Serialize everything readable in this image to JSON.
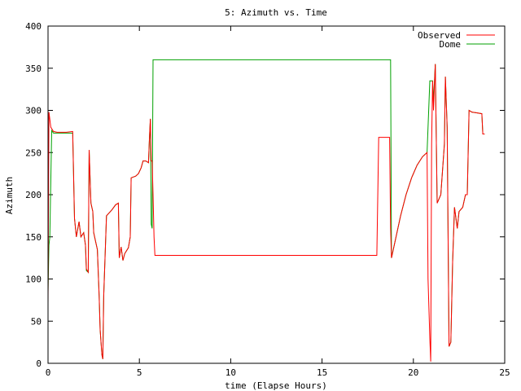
{
  "chart_data": {
    "type": "line",
    "title": "5: Azimuth vs. Time",
    "xlabel": "time (Elapse Hours)",
    "ylabel": "Azimuth",
    "xlim": [
      0,
      25
    ],
    "ylim": [
      0,
      400
    ],
    "xticks": [
      0,
      5,
      10,
      15,
      20,
      25
    ],
    "yticks": [
      0,
      50,
      100,
      150,
      200,
      250,
      300,
      350,
      400
    ],
    "grid": false,
    "legend_position": "top-right",
    "series": [
      {
        "name": "Observed",
        "color": "#ff0000",
        "points": [
          [
            0.0,
            70
          ],
          [
            0.05,
            298
          ],
          [
            0.15,
            280
          ],
          [
            0.3,
            275
          ],
          [
            0.5,
            274
          ],
          [
            1.0,
            274
          ],
          [
            1.35,
            275
          ],
          [
            1.35,
            275
          ],
          [
            1.45,
            172
          ],
          [
            1.55,
            150
          ],
          [
            1.7,
            168
          ],
          [
            1.8,
            150
          ],
          [
            1.95,
            155
          ],
          [
            2.05,
            140
          ],
          [
            2.1,
            112
          ],
          [
            2.2,
            108
          ],
          [
            2.25,
            253
          ],
          [
            2.35,
            190
          ],
          [
            2.45,
            180
          ],
          [
            2.5,
            155
          ],
          [
            2.6,
            145
          ],
          [
            2.7,
            135
          ],
          [
            2.8,
            80
          ],
          [
            2.85,
            40
          ],
          [
            2.9,
            25
          ],
          [
            2.95,
            10
          ],
          [
            3.0,
            5
          ],
          [
            3.05,
            80
          ],
          [
            3.2,
            175
          ],
          [
            3.5,
            182
          ],
          [
            3.7,
            188
          ],
          [
            3.85,
            190
          ],
          [
            3.9,
            125
          ],
          [
            4.0,
            138
          ],
          [
            4.1,
            122
          ],
          [
            4.2,
            130
          ],
          [
            4.4,
            137
          ],
          [
            4.5,
            150
          ],
          [
            4.55,
            220
          ],
          [
            4.8,
            222
          ],
          [
            4.95,
            225
          ],
          [
            5.1,
            232
          ],
          [
            5.2,
            240
          ],
          [
            5.35,
            240
          ],
          [
            5.5,
            238
          ],
          [
            5.55,
            265
          ],
          [
            5.6,
            290
          ],
          [
            5.65,
            240
          ],
          [
            5.7,
            240
          ],
          [
            5.75,
            200
          ],
          [
            5.8,
            150
          ],
          [
            5.85,
            128
          ],
          [
            6.2,
            128
          ],
          [
            18.0,
            128
          ],
          [
            18.1,
            268
          ],
          [
            18.25,
            268
          ],
          [
            18.7,
            268
          ],
          [
            18.75,
            160
          ],
          [
            18.8,
            125
          ],
          [
            19.0,
            145
          ],
          [
            19.3,
            175
          ],
          [
            19.6,
            200
          ],
          [
            19.9,
            220
          ],
          [
            20.2,
            235
          ],
          [
            20.5,
            245
          ],
          [
            20.75,
            250
          ],
          [
            20.8,
            100
          ],
          [
            20.9,
            30
          ],
          [
            20.95,
            2
          ],
          [
            21.0,
            260
          ],
          [
            21.05,
            335
          ],
          [
            21.1,
            300
          ],
          [
            21.2,
            355
          ],
          [
            21.3,
            190
          ],
          [
            21.5,
            200
          ],
          [
            21.7,
            260
          ],
          [
            21.75,
            340
          ],
          [
            21.85,
            280
          ],
          [
            21.95,
            20
          ],
          [
            22.05,
            25
          ],
          [
            22.15,
            120
          ],
          [
            22.25,
            185
          ],
          [
            22.4,
            160
          ],
          [
            22.5,
            180
          ],
          [
            22.7,
            185
          ],
          [
            22.85,
            200
          ],
          [
            22.95,
            200
          ],
          [
            23.05,
            300
          ],
          [
            23.2,
            298
          ],
          [
            23.5,
            297
          ],
          [
            23.75,
            296
          ],
          [
            23.8,
            272
          ],
          [
            23.9,
            272
          ]
        ]
      },
      {
        "name": "Dome",
        "color": "#00a000",
        "points": [
          [
            0.0,
            85
          ],
          [
            0.05,
            140
          ],
          [
            0.1,
            150
          ],
          [
            0.2,
            276
          ],
          [
            0.3,
            273
          ],
          [
            0.5,
            273
          ],
          [
            1.0,
            273
          ],
          [
            1.35,
            273
          ],
          [
            1.45,
            172
          ],
          [
            1.55,
            150
          ],
          [
            1.7,
            168
          ],
          [
            1.8,
            150
          ],
          [
            1.95,
            155
          ],
          [
            2.05,
            140
          ],
          [
            2.1,
            110
          ],
          [
            2.2,
            108
          ],
          [
            2.25,
            253
          ],
          [
            2.35,
            190
          ],
          [
            2.45,
            180
          ],
          [
            2.5,
            155
          ],
          [
            2.6,
            145
          ],
          [
            2.7,
            135
          ],
          [
            2.8,
            80
          ],
          [
            2.85,
            40
          ],
          [
            2.9,
            25
          ],
          [
            2.95,
            10
          ],
          [
            3.0,
            5
          ],
          [
            3.05,
            80
          ],
          [
            3.2,
            175
          ],
          [
            3.5,
            182
          ],
          [
            3.7,
            188
          ],
          [
            3.85,
            190
          ],
          [
            3.9,
            125
          ],
          [
            4.0,
            138
          ],
          [
            4.1,
            122
          ],
          [
            4.2,
            130
          ],
          [
            4.4,
            137
          ],
          [
            4.5,
            150
          ],
          [
            4.55,
            220
          ],
          [
            4.8,
            222
          ],
          [
            4.95,
            225
          ],
          [
            5.1,
            232
          ],
          [
            5.2,
            240
          ],
          [
            5.35,
            240
          ],
          [
            5.5,
            238
          ],
          [
            5.55,
            265
          ],
          [
            5.6,
            290
          ],
          [
            5.65,
            165
          ],
          [
            5.7,
            160
          ],
          [
            5.75,
            360
          ],
          [
            5.8,
            360
          ],
          [
            18.75,
            360
          ],
          [
            18.8,
            125
          ],
          [
            19.0,
            145
          ],
          [
            19.3,
            175
          ],
          [
            19.6,
            200
          ],
          [
            19.9,
            220
          ],
          [
            20.2,
            235
          ],
          [
            20.5,
            245
          ],
          [
            20.75,
            250
          ],
          [
            20.9,
            335
          ],
          [
            21.05,
            335
          ],
          [
            21.1,
            310
          ],
          [
            21.2,
            355
          ],
          [
            21.3,
            190
          ],
          [
            21.5,
            200
          ],
          [
            21.7,
            260
          ],
          [
            21.75,
            340
          ],
          [
            21.85,
            280
          ],
          [
            21.95,
            20
          ],
          [
            22.05,
            25
          ],
          [
            22.15,
            120
          ],
          [
            22.25,
            185
          ],
          [
            22.4,
            160
          ],
          [
            22.5,
            180
          ],
          [
            22.7,
            185
          ],
          [
            22.85,
            200
          ],
          [
            22.95,
            200
          ],
          [
            23.05,
            300
          ],
          [
            23.2,
            298
          ],
          [
            23.5,
            297
          ],
          [
            23.75,
            296
          ],
          [
            23.8,
            272
          ],
          [
            23.9,
            272
          ]
        ]
      }
    ]
  }
}
